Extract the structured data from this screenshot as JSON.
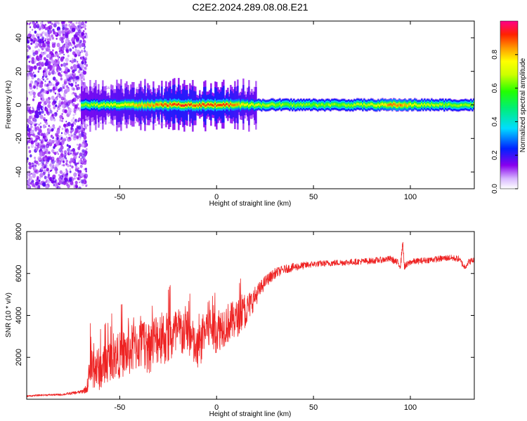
{
  "title": "C2E2.2024.289.08.08.E21",
  "chart_data": [
    {
      "type": "heatmap",
      "xlabel": "Height of straight line (km)",
      "ylabel": "Frequency (Hz)",
      "xlim": [
        -98,
        133
      ],
      "ylim": [
        -50,
        50
      ],
      "xticks": [
        -50,
        0,
        50,
        100
      ],
      "yticks": [
        -40,
        -20,
        0,
        20,
        40
      ],
      "colorbar": {
        "label": "Normalized spectral amplitude",
        "ticks": [
          "0.0",
          "0.2",
          "0.4",
          "0.6",
          "0.8"
        ],
        "range": [
          0,
          1
        ]
      },
      "noise_region_x": [
        -98,
        -67
      ],
      "band_center_hz": 0,
      "band_halfwidth_hz": [
        -3,
        3
      ],
      "peak_points": [
        {
          "x": -60,
          "amp": 0.75
        },
        {
          "x": -52,
          "amp": 0.8
        },
        {
          "x": -44,
          "amp": 0.85
        },
        {
          "x": -36,
          "amp": 0.9
        },
        {
          "x": -28,
          "amp": 0.95
        },
        {
          "x": -20,
          "amp": 1.0
        },
        {
          "x": -12,
          "amp": 0.95
        },
        {
          "x": -5,
          "amp": 1.0
        },
        {
          "x": 3,
          "amp": 1.0
        },
        {
          "x": 10,
          "amp": 0.9
        },
        {
          "x": 20,
          "amp": 0.75
        },
        {
          "x": 35,
          "amp": 0.7
        },
        {
          "x": 50,
          "amp": 0.7
        },
        {
          "x": 65,
          "amp": 0.7
        },
        {
          "x": 80,
          "amp": 0.75
        },
        {
          "x": 92,
          "amp": 0.95
        },
        {
          "x": 105,
          "amp": 0.75
        },
        {
          "x": 120,
          "amp": 0.7
        },
        {
          "x": 133,
          "amp": 0.7
        }
      ]
    },
    {
      "type": "line",
      "xlabel": "Height of straight line (km)",
      "ylabel": "SNR (10 * v/v)",
      "xlim": [
        -98,
        133
      ],
      "ylim": [
        0,
        8000
      ],
      "xticks": [
        -50,
        0,
        50,
        100
      ],
      "yticks": [
        2000,
        4000,
        6000,
        8000
      ],
      "series": [
        {
          "color": "#ee2222",
          "x": [
            -98,
            -90,
            -80,
            -70,
            -67,
            -65,
            -60,
            -55,
            -50,
            -45,
            -40,
            -35,
            -30,
            -25,
            -20,
            -15,
            -10,
            -5,
            0,
            5,
            10,
            15,
            20,
            25,
            30,
            35,
            40,
            50,
            60,
            70,
            80,
            90,
            95,
            96,
            97,
            100,
            110,
            120,
            125,
            128,
            130,
            133
          ],
          "y": [
            150,
            200,
            220,
            350,
            500,
            1600,
            1400,
            1900,
            2100,
            2300,
            2600,
            2500,
            3000,
            2900,
            3100,
            3300,
            2200,
            3500,
            3300,
            3600,
            3800,
            4200,
            4900,
            5600,
            6000,
            6200,
            6300,
            6450,
            6500,
            6550,
            6600,
            6700,
            6400,
            7500,
            6300,
            6550,
            6650,
            6750,
            6700,
            6300,
            6550,
            6650
          ],
          "noise_amplitude": [
            40,
            40,
            50,
            80,
            200,
            1100,
            1000,
            1000,
            1100,
            1200,
            1200,
            1300,
            1300,
            1300,
            1300,
            1200,
            1000,
            1200,
            1100,
            1000,
            900,
            800,
            500,
            300,
            250,
            200,
            200,
            150,
            150,
            150,
            150,
            150,
            200,
            200,
            200,
            150,
            150,
            150,
            150,
            150,
            150,
            150
          ]
        }
      ]
    }
  ]
}
